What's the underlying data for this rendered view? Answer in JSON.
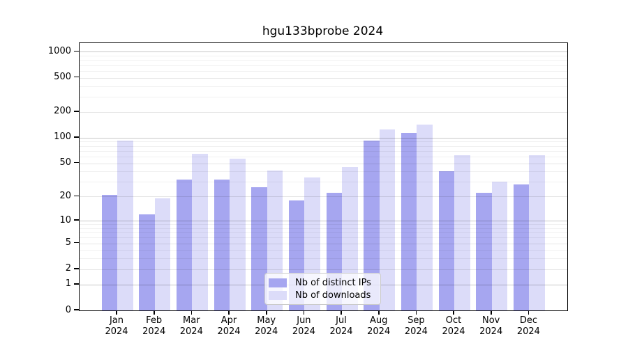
{
  "chart_data": {
    "type": "bar",
    "title": "hgu133bprobe 2024",
    "xlabel": "",
    "ylabel": "",
    "categories": [
      "Jan",
      "Feb",
      "Mar",
      "Apr",
      "May",
      "Jun",
      "Jul",
      "Aug",
      "Sep",
      "Oct",
      "Nov",
      "Dec"
    ],
    "category_year": "2024",
    "series": [
      {
        "name": "Nb of distinct IPs",
        "color": "#a6a6f0",
        "values": [
          21,
          12,
          32,
          32,
          26,
          18,
          22,
          92,
          113,
          40,
          22,
          28
        ]
      },
      {
        "name": "Nb of downloads",
        "color": "#dcdcf9",
        "values": [
          92,
          19,
          65,
          57,
          41,
          34,
          45,
          126,
          143,
          62,
          30,
          62
        ]
      }
    ],
    "yscale": "log1p",
    "ylim": [
      0,
      1260
    ],
    "yticks": [
      0,
      1,
      2,
      5,
      10,
      20,
      50,
      100,
      200,
      500,
      1000
    ],
    "grid": {
      "on": true,
      "major": [
        1,
        10,
        100,
        1000
      ],
      "mid": [
        2,
        5,
        20,
        50,
        200,
        500
      ],
      "minor": [
        3,
        4,
        6,
        7,
        8,
        9,
        30,
        40,
        60,
        70,
        80,
        90,
        300,
        400,
        600,
        700,
        800,
        900
      ]
    },
    "legend": {
      "position": "lower center"
    },
    "colors": {
      "spine": "#000000",
      "background": "#ffffff",
      "grid_major": "rgba(0,0,0,0.22)",
      "grid_mid": "rgba(0,0,0,0.10)",
      "grid_minor": "rgba(0,0,0,0.055)"
    }
  }
}
